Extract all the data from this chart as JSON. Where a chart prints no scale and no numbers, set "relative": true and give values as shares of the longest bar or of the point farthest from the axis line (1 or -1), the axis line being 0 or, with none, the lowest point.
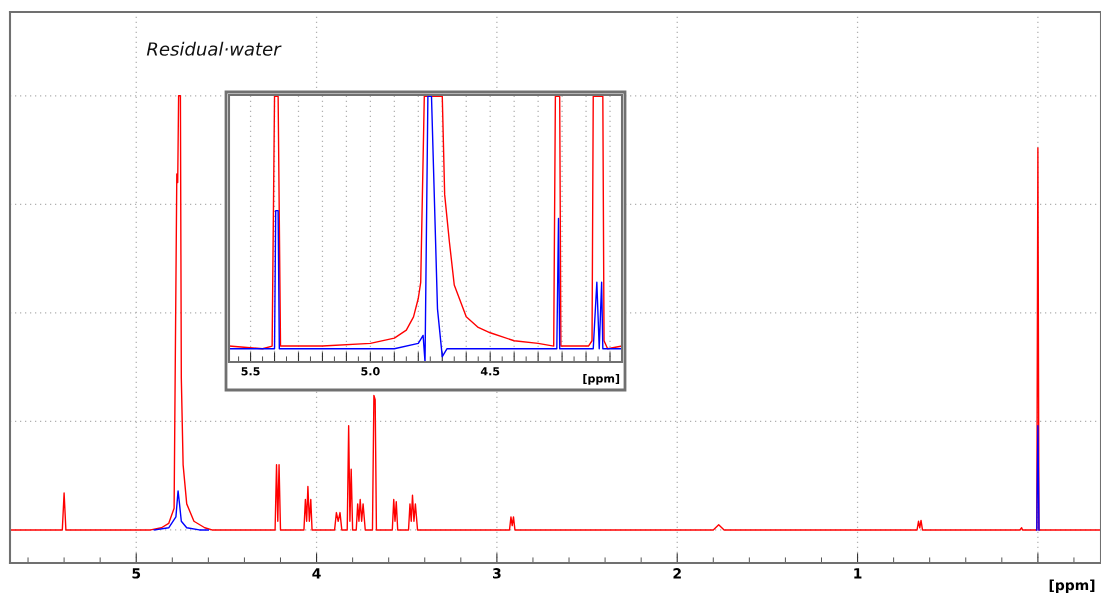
{
  "chart_data": [
    {
      "type": "line",
      "relative": true,
      "xlabel": "[ppm]",
      "xlim": [
        5.7,
        -0.35
      ],
      "xticks": [
        5,
        4,
        3,
        2,
        1,
        {
          "value": 0,
          "label": null
        }
      ],
      "grid": true,
      "annotations": [
        "Residual·water"
      ],
      "series": [
        {
          "color": "#ff0000",
          "x": [
            5.7,
            5.41,
            5.4,
            5.39,
            4.92,
            4.86,
            4.82,
            4.79,
            4.775,
            4.77,
            4.765,
            4.755,
            4.75,
            4.74,
            4.72,
            4.68,
            4.62,
            4.58,
            4.23,
            4.222,
            4.215,
            4.208,
            4.2,
            4.07,
            4.062,
            4.055,
            4.048,
            4.04,
            4.032,
            4.025,
            3.9,
            3.89,
            3.88,
            3.87,
            3.86,
            3.83,
            3.822,
            3.815,
            3.808,
            3.8,
            3.78,
            3.772,
            3.765,
            3.758,
            3.75,
            3.742,
            3.73,
            3.69,
            3.682,
            3.675,
            3.668,
            3.58,
            3.572,
            3.565,
            3.558,
            3.55,
            3.49,
            3.482,
            3.475,
            3.468,
            3.46,
            3.452,
            3.44,
            2.93,
            2.922,
            2.915,
            2.908,
            2.9,
            1.8,
            1.77,
            1.74,
            0.67,
            0.662,
            0.655,
            0.648,
            0.64,
            0.1,
            0.09,
            0.085,
            0.006,
            0.0,
            -0.006,
            -0.35
          ],
          "values": [
            0,
            0,
            0.085,
            0,
            0,
            0.005,
            0.015,
            0.05,
            0.82,
            0.8,
            1.0,
            1.0,
            0.35,
            0.15,
            0.06,
            0.02,
            0.005,
            0,
            0,
            0.15,
            0.02,
            0.15,
            0,
            0,
            0.07,
            0.02,
            0.1,
            0.02,
            0.07,
            0,
            0,
            0.04,
            0.02,
            0.04,
            0,
            0,
            0.24,
            0.02,
            0.14,
            0,
            0,
            0.06,
            0.02,
            0.07,
            0.02,
            0.06,
            0,
            0,
            0.31,
            0.3,
            0,
            0,
            0.07,
            0.02,
            0.065,
            0,
            0,
            0.06,
            0.02,
            0.08,
            0.02,
            0.06,
            0,
            0,
            0.03,
            0.01,
            0.03,
            0,
            0,
            0.012,
            0,
            0,
            0.02,
            0.005,
            0.022,
            0,
            0,
            0.005,
            0,
            0,
            0.88,
            0,
            0
          ]
        },
        {
          "color": "#0000ff",
          "x": [
            4.9,
            4.82,
            4.78,
            4.768,
            4.76,
            4.75,
            4.72,
            4.65,
            4.6,
            1.0,
            0.006,
            0.0,
            -0.006
          ],
          "values": [
            0,
            0.005,
            0.03,
            0.09,
            0.06,
            0.02,
            0.005,
            0,
            0,
            null,
            0,
            0.24,
            0
          ]
        }
      ]
    },
    {
      "type": "line",
      "relative": true,
      "xlabel": "[ppm]",
      "xlim": [
        5.59,
        3.95
      ],
      "xticks": [
        {
          "value": 5.5,
          "label": "5.5"
        },
        {
          "value": 5.4,
          "label": null
        },
        {
          "value": 5.3,
          "label": null
        },
        {
          "value": 5.2,
          "label": null
        },
        {
          "value": 5.1,
          "label": null
        },
        {
          "value": 5.0,
          "label": "5.0"
        },
        {
          "value": 4.9,
          "label": null
        },
        {
          "value": 4.8,
          "label": null
        },
        {
          "value": 4.7,
          "label": null
        },
        {
          "value": 4.6,
          "label": null
        },
        {
          "value": 4.5,
          "label": "4.5"
        },
        {
          "value": 4.4,
          "label": null
        },
        {
          "value": 4.3,
          "label": null
        },
        {
          "value": 4.2,
          "label": null
        },
        {
          "value": 4.1,
          "label": null
        },
        {
          "value": 4.0,
          "label": null
        }
      ],
      "grid": "x",
      "series": [
        {
          "color": "#ff0000",
          "x": [
            5.59,
            5.45,
            5.41,
            5.4,
            5.385,
            5.375,
            5.2,
            5.0,
            4.9,
            4.85,
            4.82,
            4.8,
            4.79,
            4.775,
            4.7,
            4.69,
            4.67,
            4.65,
            4.6,
            4.55,
            4.5,
            4.4,
            4.3,
            4.235,
            4.228,
            4.21,
            4.205,
            4.09,
            4.075,
            4.07,
            4.03,
            4.025,
            4.01,
            3.95
          ],
          "values": [
            0.06,
            0.05,
            0.06,
            1.0,
            1.0,
            0.06,
            0.06,
            0.07,
            0.09,
            0.12,
            0.17,
            0.24,
            0.3,
            1.0,
            1.0,
            0.63,
            0.45,
            0.29,
            0.17,
            0.13,
            0.11,
            0.08,
            0.07,
            0.06,
            1.0,
            1.0,
            0.06,
            0.06,
            0.08,
            1.0,
            1.0,
            0.08,
            0.05,
            0.06
          ]
        },
        {
          "color": "#0000ff",
          "x": [
            5.59,
            5.4,
            5.395,
            5.385,
            5.38,
            4.9,
            4.8,
            4.78,
            4.772,
            4.76,
            4.745,
            4.72,
            4.7,
            4.68,
            4.3,
            4.222,
            4.215,
            4.21,
            4.07,
            4.055,
            4.045,
            4.035,
            4.03,
            3.95
          ],
          "values": [
            0.05,
            0.05,
            0.57,
            0.57,
            0.05,
            0.05,
            0.07,
            0.1,
            0.0,
            1.0,
            1.0,
            0.2,
            0.02,
            0.05,
            0.05,
            0.05,
            0.54,
            0.05,
            0.05,
            0.3,
            0.05,
            0.3,
            0.05,
            0.05
          ]
        }
      ]
    }
  ]
}
